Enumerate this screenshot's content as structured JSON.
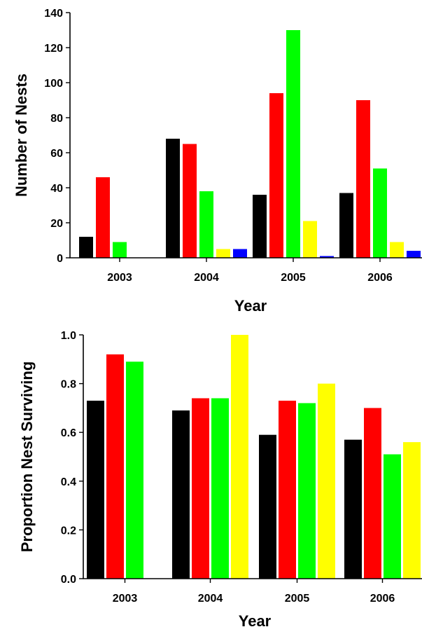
{
  "figure": {
    "colors": {
      "black": "#000000",
      "red": "#ff0000",
      "green": "#00ff00",
      "yellow": "#ffff00",
      "blue": "#0000ff"
    }
  },
  "chart_data": [
    {
      "type": "bar",
      "title": "",
      "xlabel": "Year",
      "ylabel": "Number of Nests",
      "ylim": [
        0,
        140
      ],
      "yticks": [
        "0",
        "20",
        "40",
        "60",
        "80",
        "100",
        "120",
        "140"
      ],
      "grid": false,
      "legend": "none",
      "categories": [
        "2003",
        "2004",
        "2005",
        "2006"
      ],
      "series": [
        {
          "color": "#000000",
          "values": [
            12,
            68,
            36,
            37
          ]
        },
        {
          "color": "#ff0000",
          "values": [
            46,
            65,
            94,
            90
          ]
        },
        {
          "color": "#00ff00",
          "values": [
            9,
            38,
            130,
            51
          ]
        },
        {
          "color": "#ffff00",
          "values": [
            0,
            5,
            21,
            9
          ]
        },
        {
          "color": "#0000ff",
          "values": [
            0,
            5,
            1,
            4
          ]
        }
      ]
    },
    {
      "type": "bar",
      "title": "",
      "xlabel": "Year",
      "ylabel": "Proportion Nest Surviving",
      "ylim": [
        0,
        1.0
      ],
      "yticks": [
        "0.0",
        "0.2",
        "0.4",
        "0.6",
        "0.8",
        "1.0"
      ],
      "grid": false,
      "legend": "none",
      "categories": [
        "2003",
        "2004",
        "2005",
        "2006"
      ],
      "series": [
        {
          "color": "#000000",
          "values": [
            0.73,
            0.69,
            0.59,
            0.57
          ]
        },
        {
          "color": "#ff0000",
          "values": [
            0.92,
            0.74,
            0.73,
            0.7
          ]
        },
        {
          "color": "#00ff00",
          "values": [
            0.89,
            0.74,
            0.72,
            0.51
          ]
        },
        {
          "color": "#ffff00",
          "values": [
            null,
            1.0,
            0.8,
            0.56
          ]
        }
      ]
    }
  ]
}
